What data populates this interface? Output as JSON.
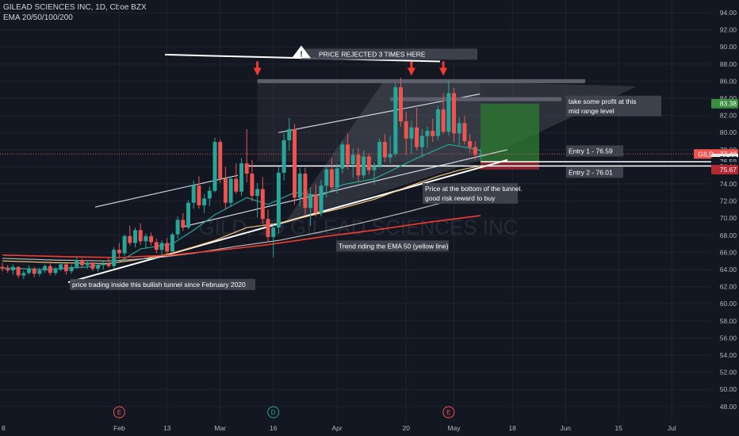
{
  "header": {
    "symbol_line": "GILEAD SCIENCES INC, 1D, Cboe BZX",
    "indicator_line": "EMA 20/50/100/200"
  },
  "colors": {
    "background": "#131722",
    "grid": "#1f2430",
    "up": "#26a69a",
    "down": "#ef5350",
    "ema20": "#26a69a",
    "ema50": "#f7c77a",
    "ema100": "#b8b8b8",
    "ema200": "#f23b2f",
    "annotation_box": "#434651",
    "profit_zone": "#2e7d32",
    "loss_zone": "#b22833",
    "triangle": "#5d606b"
  },
  "chart_data": {
    "type": "candlestick",
    "symbol": "GILD",
    "interval": "1D",
    "ylim": [
      46.5,
      96
    ],
    "y_scale": "linear",
    "y_ticks": [
      "94.00",
      "92.00",
      "90.00",
      "88.00",
      "86.00",
      "84.00",
      "82.00",
      "80.00",
      "78.00",
      "76.00",
      "74.00",
      "72.00",
      "70.00",
      "68.00",
      "66.00",
      "64.00",
      "62.00",
      "60.00",
      "58.00",
      "56.00",
      "54.00",
      "52.00",
      "50.00",
      "48.00"
    ],
    "x_ticks": [
      {
        "label": "Feb",
        "bar": 22
      },
      {
        "label": "13",
        "bar": 31
      },
      {
        "label": "Mar",
        "bar": 41
      },
      {
        "label": "16",
        "bar": 51
      },
      {
        "label": "Apr",
        "bar": 63
      },
      {
        "label": "20",
        "bar": 76
      },
      {
        "label": "May",
        "bar": 85
      },
      {
        "label": "18",
        "bar": 96
      },
      {
        "label": "Jun",
        "bar": 106
      },
      {
        "label": "15",
        "bar": 116
      },
      {
        "label": "Jul",
        "bar": 126
      }
    ],
    "x_edge_label": "8",
    "ohlc": [
      [
        64.3,
        64.8,
        63.8,
        64.1
      ],
      [
        64.1,
        64.5,
        63.6,
        63.9
      ],
      [
        63.9,
        64.6,
        63.4,
        64.3
      ],
      [
        64.3,
        64.4,
        63.0,
        63.3
      ],
      [
        63.3,
        63.9,
        62.9,
        63.6
      ],
      [
        63.6,
        64.5,
        63.4,
        64.1
      ],
      [
        64.1,
        64.3,
        63.1,
        63.5
      ],
      [
        63.5,
        64.2,
        63.2,
        63.9
      ],
      [
        63.9,
        64.6,
        63.6,
        64.4
      ],
      [
        64.4,
        64.7,
        63.3,
        63.6
      ],
      [
        63.6,
        64.3,
        63.3,
        64.0
      ],
      [
        64.0,
        64.9,
        63.8,
        64.6
      ],
      [
        64.6,
        64.7,
        63.4,
        63.8
      ],
      [
        63.8,
        64.6,
        63.5,
        64.3
      ],
      [
        64.3,
        65.4,
        64.1,
        65.1
      ],
      [
        65.1,
        65.3,
        64.2,
        64.5
      ],
      [
        64.5,
        65.1,
        64.1,
        64.8
      ],
      [
        64.8,
        64.9,
        63.8,
        64.1
      ],
      [
        64.1,
        64.8,
        63.7,
        64.5
      ],
      [
        64.5,
        65.0,
        64.0,
        64.7
      ],
      [
        64.7,
        65.4,
        64.2,
        64.4
      ],
      [
        64.4,
        66.6,
        64.1,
        66.3
      ],
      [
        66.3,
        67.1,
        65.3,
        65.9
      ],
      [
        65.9,
        68.1,
        65.6,
        67.9
      ],
      [
        67.9,
        69.1,
        66.8,
        67.1
      ],
      [
        67.1,
        68.9,
        66.6,
        68.6
      ],
      [
        68.6,
        69.4,
        66.9,
        67.3
      ],
      [
        67.3,
        68.2,
        66.5,
        67.9
      ],
      [
        67.9,
        68.3,
        66.8,
        67.2
      ],
      [
        67.2,
        67.6,
        65.9,
        66.3
      ],
      [
        66.3,
        67.4,
        65.7,
        67.1
      ],
      [
        67.1,
        67.7,
        65.8,
        66.1
      ],
      [
        66.1,
        68.3,
        65.9,
        68.1
      ],
      [
        68.1,
        70.2,
        67.6,
        69.8
      ],
      [
        69.8,
        70.6,
        68.5,
        68.9
      ],
      [
        68.9,
        72.1,
        68.7,
        71.8
      ],
      [
        71.8,
        74.4,
        71.1,
        73.8
      ],
      [
        73.8,
        74.9,
        71.1,
        71.5
      ],
      [
        71.5,
        72.8,
        70.6,
        72.3
      ],
      [
        72.3,
        73.7,
        71.4,
        73.2
      ],
      [
        73.2,
        79.4,
        73.0,
        78.9
      ],
      [
        78.9,
        79.2,
        74.1,
        74.6
      ],
      [
        74.6,
        76.0,
        71.0,
        71.8
      ],
      [
        71.8,
        74.9,
        71.3,
        74.6
      ],
      [
        74.6,
        76.4,
        72.8,
        73.1
      ],
      [
        73.1,
        77.0,
        72.6,
        76.4
      ],
      [
        76.4,
        80.4,
        74.2,
        75.2
      ],
      [
        75.2,
        76.8,
        72.0,
        72.6
      ],
      [
        72.6,
        74.1,
        70.1,
        73.4
      ],
      [
        73.4,
        74.8,
        69.3,
        69.9
      ],
      [
        69.9,
        71.0,
        67.2,
        67.8
      ],
      [
        67.8,
        69.3,
        65.4,
        68.9
      ],
      [
        68.9,
        76.0,
        68.2,
        75.3
      ],
      [
        75.3,
        79.9,
        74.4,
        79.1
      ],
      [
        79.1,
        81.7,
        77.9,
        80.4
      ],
      [
        80.4,
        81.0,
        71.6,
        72.4
      ],
      [
        72.4,
        75.9,
        71.4,
        75.2
      ],
      [
        75.2,
        75.9,
        70.3,
        71.2
      ],
      [
        71.2,
        73.6,
        69.1,
        72.8
      ],
      [
        72.8,
        73.9,
        70.2,
        70.6
      ],
      [
        70.6,
        74.5,
        70.2,
        73.8
      ],
      [
        73.8,
        76.1,
        72.4,
        75.7
      ],
      [
        75.7,
        77.0,
        73.1,
        73.6
      ],
      [
        73.6,
        76.4,
        72.9,
        75.8
      ],
      [
        75.8,
        79.0,
        75.2,
        78.6
      ],
      [
        78.6,
        79.9,
        75.7,
        76.3
      ],
      [
        76.3,
        78.1,
        74.7,
        77.4
      ],
      [
        77.4,
        78.2,
        74.3,
        75.0
      ],
      [
        75.0,
        77.9,
        74.6,
        77.2
      ],
      [
        77.2,
        77.6,
        75.1,
        75.6
      ],
      [
        75.6,
        76.5,
        73.9,
        76.1
      ],
      [
        76.1,
        79.3,
        75.8,
        78.9
      ],
      [
        78.9,
        79.8,
        76.5,
        77.1
      ],
      [
        77.1,
        79.6,
        76.4,
        77.5
      ],
      [
        77.5,
        85.8,
        77.2,
        85.3
      ],
      [
        85.3,
        86.4,
        80.7,
        81.3
      ],
      [
        81.3,
        82.4,
        77.4,
        79.3
      ],
      [
        79.3,
        81.4,
        77.5,
        80.6
      ],
      [
        80.6,
        82.9,
        77.9,
        78.3
      ],
      [
        78.3,
        80.4,
        77.1,
        79.6
      ],
      [
        79.6,
        80.7,
        78.2,
        80.2
      ],
      [
        80.2,
        81.6,
        78.9,
        79.6
      ],
      [
        79.6,
        83.1,
        79.1,
        82.7
      ],
      [
        82.7,
        84.6,
        79.8,
        80.1
      ],
      [
        80.1,
        86.1,
        79.7,
        84.6
      ],
      [
        84.6,
        85.2,
        78.9,
        79.9
      ],
      [
        79.9,
        81.8,
        78.5,
        81.1
      ],
      [
        81.1,
        81.9,
        78.6,
        79.0
      ],
      [
        79.0,
        79.8,
        77.6,
        78.3
      ],
      [
        78.3,
        79.0,
        76.8,
        77.4
      ],
      [
        77.4,
        78.1,
        76.6,
        77.5
      ]
    ],
    "ema_series": [
      {
        "name": "EMA 20",
        "values": [
          [
            0,
            64.2
          ],
          [
            8,
            64.0
          ],
          [
            16,
            64.3
          ],
          [
            22,
            64.9
          ],
          [
            26,
            66.4
          ],
          [
            32,
            67.0
          ],
          [
            36,
            68.6
          ],
          [
            40,
            70.4
          ],
          [
            46,
            72.4
          ],
          [
            50,
            71.6
          ],
          [
            55,
            73.0
          ],
          [
            60,
            72.6
          ],
          [
            64,
            73.9
          ],
          [
            70,
            74.6
          ],
          [
            74,
            75.8
          ],
          [
            78,
            77.0
          ],
          [
            84,
            78.6
          ],
          [
            88,
            78.2
          ],
          [
            90,
            77.9
          ]
        ]
      },
      {
        "name": "EMA 50",
        "values": [
          [
            0,
            65.0
          ],
          [
            10,
            64.8
          ],
          [
            20,
            64.7
          ],
          [
            26,
            65.2
          ],
          [
            32,
            65.9
          ],
          [
            40,
            67.4
          ],
          [
            46,
            68.9
          ],
          [
            52,
            69.4
          ],
          [
            58,
            70.3
          ],
          [
            64,
            71.2
          ],
          [
            70,
            72.2
          ],
          [
            76,
            73.6
          ],
          [
            82,
            74.9
          ],
          [
            86,
            75.6
          ],
          [
            90,
            76.1
          ]
        ]
      },
      {
        "name": "EMA 100",
        "values": [
          [
            0,
            65.3
          ],
          [
            10,
            65.1
          ],
          [
            20,
            65.0
          ],
          [
            28,
            65.3
          ],
          [
            36,
            65.9
          ],
          [
            44,
            66.7
          ],
          [
            52,
            67.4
          ],
          [
            60,
            68.4
          ],
          [
            68,
            69.5
          ],
          [
            76,
            70.7
          ],
          [
            84,
            72.0
          ],
          [
            90,
            72.8
          ]
        ]
      },
      {
        "name": "EMA 200",
        "values": [
          [
            0,
            65.7
          ],
          [
            12,
            65.5
          ],
          [
            22,
            65.4
          ],
          [
            32,
            65.7
          ],
          [
            40,
            66.2
          ],
          [
            50,
            66.9
          ],
          [
            60,
            67.8
          ],
          [
            70,
            68.6
          ],
          [
            80,
            69.5
          ],
          [
            90,
            70.3
          ]
        ]
      }
    ],
    "price_labels": [
      {
        "text": "83.38",
        "value": 83.38,
        "color": "#388e3c"
      },
      {
        "text": "GILD · 77.49",
        "value": 77.49,
        "color": "#ef5350"
      },
      {
        "text": "76.97",
        "value": 76.97,
        "color": "#e6e6e6"
      },
      {
        "text": "76.59",
        "value": 76.59,
        "color": "#131722"
      },
      {
        "text": "76.01",
        "value": 76.01,
        "color": "#131722"
      },
      {
        "text": "75.67",
        "value": 75.67,
        "color": "#b22833"
      }
    ],
    "last_price": 77.49,
    "trade": {
      "entry_1": 76.59,
      "entry_2": 76.01,
      "target": 83.38,
      "stop": 75.67
    },
    "earnings_events": [
      {
        "letter": "E",
        "bar": 22
      },
      {
        "letter": "D",
        "bar": 51
      },
      {
        "letter": "E",
        "bar": 84
      }
    ],
    "watermark": "GILD, 1D  GILEAD SCIENCES INC",
    "annotations": {
      "rejected": "PRICE REJECTED 3 TIMES HERE",
      "take_profit": "take some profit at this  mid range level",
      "entry_1": "Entry 1 - 76.59",
      "entry_2": "Entry 2 - 76.01",
      "bottom_tunnel": "Price at the bottom of the tunnel. good risk reward to buy",
      "ema_trend": "Trend riding the EMA 50 (yellow line)",
      "tunnel": "price trading inside this bullish tunnel since February 2020"
    }
  }
}
